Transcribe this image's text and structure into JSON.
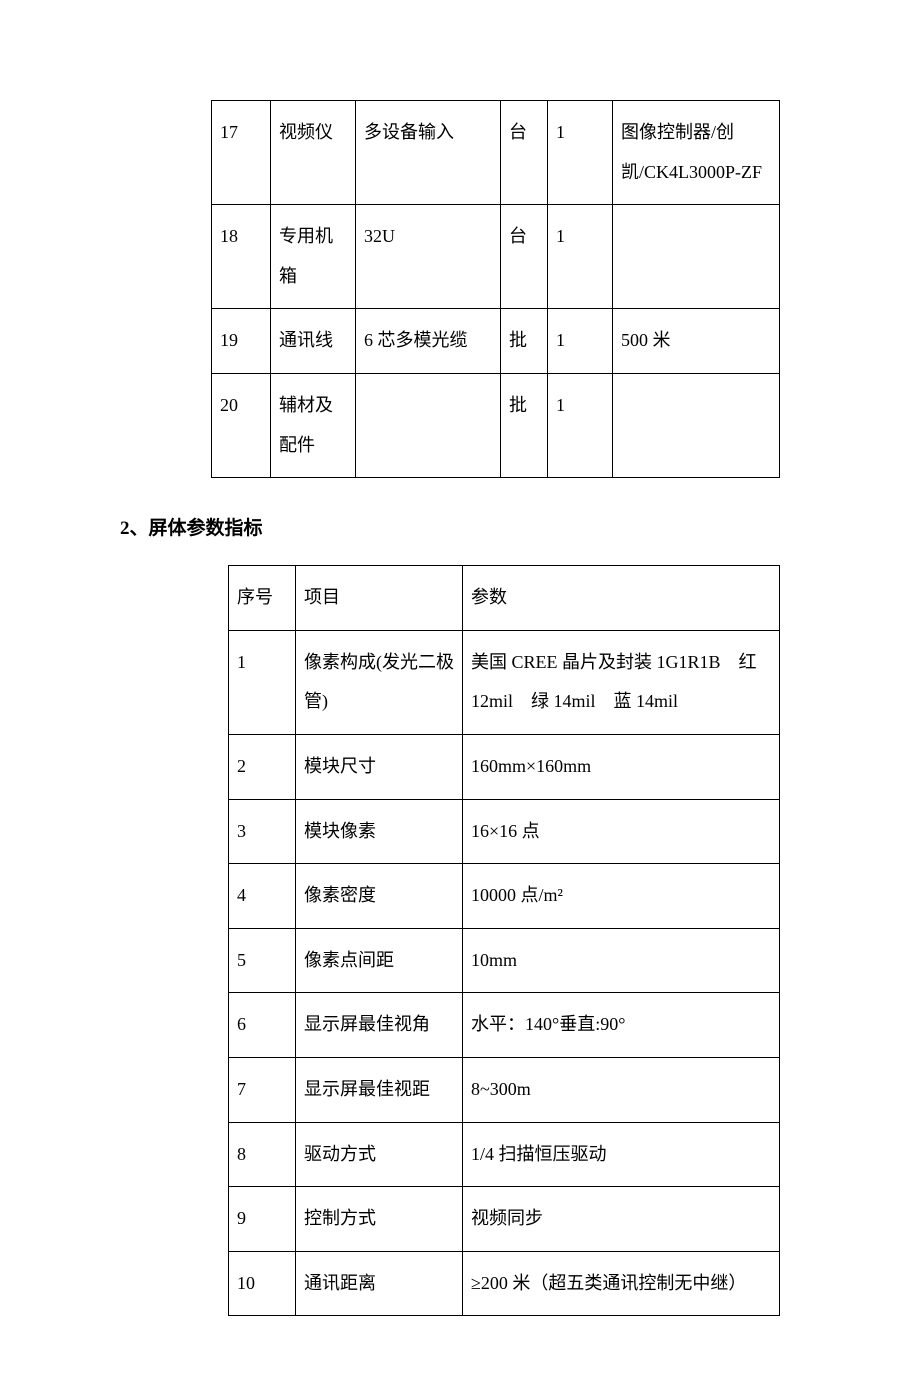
{
  "table1": {
    "rows": [
      {
        "no": "17",
        "name": "视频仪",
        "spec": "多设备输入",
        "unit": "台",
        "qty": "1",
        "remark": "图像控制器/创凯/CK4L3000P-ZF"
      },
      {
        "no": "18",
        "name": "专用机箱",
        "spec": "32U",
        "unit": "台",
        "qty": "1",
        "remark": ""
      },
      {
        "no": "19",
        "name": "通讯线",
        "spec": "6 芯多模光缆",
        "unit": "批",
        "qty": "1",
        "remark": "500 米"
      },
      {
        "no": "20",
        "name": "辅材及配件",
        "spec": "",
        "unit": "批",
        "qty": "1",
        "remark": ""
      }
    ]
  },
  "section_heading": "2、屏体参数指标",
  "table2": {
    "header": {
      "no": "序号",
      "item": "项目",
      "param": "参数"
    },
    "rows": [
      {
        "no": "1",
        "item": "像素构成(发光二极管)",
        "param": "美国 CREE 晶片及封装 1G1R1B 红12mil 绿 14mil 蓝 14mil"
      },
      {
        "no": "2",
        "item": "模块尺寸",
        "param": "160mm×160mm"
      },
      {
        "no": "3",
        "item": "模块像素",
        "param": "16×16 点"
      },
      {
        "no": "4",
        "item": "像素密度",
        "param": "10000 点/m²"
      },
      {
        "no": "5",
        "item": "像素点间距",
        "param": "10mm"
      },
      {
        "no": "6",
        "item": "显示屏最佳视角",
        "param": "水平：140°垂直:90°"
      },
      {
        "no": "7",
        "item": "显示屏最佳视距",
        "param": "8~300m"
      },
      {
        "no": "8",
        "item": "驱动方式",
        "param": " 1/4 扫描恒压驱动"
      },
      {
        "no": "9",
        "item": "控制方式",
        "param": "视频同步"
      },
      {
        "no": "10",
        "item": "通讯距离",
        "param": "≥200 米（超五类通讯控制无中继）"
      }
    ]
  }
}
